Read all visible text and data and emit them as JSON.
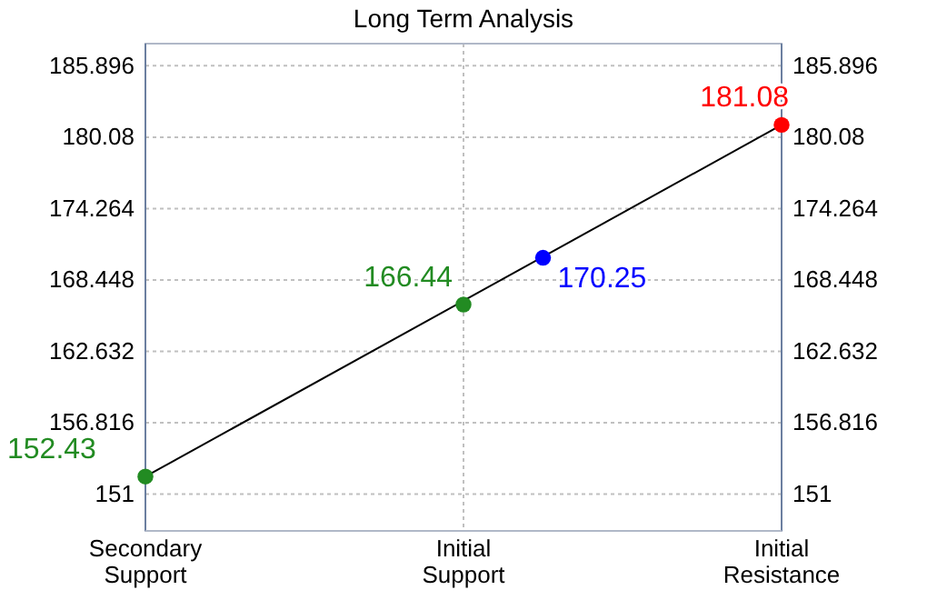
{
  "chart_data": {
    "type": "scatter",
    "title": "Long Term Analysis",
    "categories": [
      "Secondary Support",
      null,
      null,
      null,
      "Initial Support",
      null,
      null,
      null,
      "Initial Resistance"
    ],
    "ylim": [
      148,
      187.7
    ],
    "yticks": [
      151,
      156.816,
      162.632,
      168.448,
      174.264,
      180.08,
      185.896
    ],
    "y2lim": [
      148,
      187.7
    ],
    "y2ticks": [
      151,
      156.816,
      162.632,
      168.448,
      174.264,
      180.08,
      185.896
    ],
    "grid": true,
    "series": [
      {
        "type": "line",
        "color": "#000000",
        "values": [
          152.43,
          null,
          null,
          null,
          null,
          null,
          null,
          null,
          181.08
        ],
        "line_style": "solid"
      },
      {
        "marker": "circle",
        "values": [
          152.43,
          null,
          null,
          null,
          166.44,
          170.25,
          null,
          null,
          181.08
        ],
        "value_labels": [
          "152.43",
          null,
          null,
          null,
          "166.44",
          "170.25",
          null,
          null,
          "181.08"
        ],
        "colors": [
          "#228b22",
          null,
          null,
          null,
          "#228b22",
          "#0000ff",
          null,
          null,
          "#ff0000"
        ]
      }
    ]
  }
}
